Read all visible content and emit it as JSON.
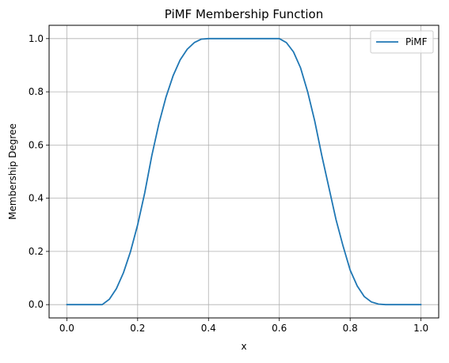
{
  "chart_data": {
    "type": "line",
    "title": "PiMF Membership Function",
    "xlabel": "x",
    "ylabel": "Membership Degree",
    "xlim": [
      -0.05,
      1.05
    ],
    "ylim": [
      -0.05,
      1.05
    ],
    "x_ticks": [
      0.0,
      0.2,
      0.4,
      0.6,
      0.8,
      1.0
    ],
    "x_tick_labels": [
      "0.0",
      "0.2",
      "0.4",
      "0.6",
      "0.8",
      "1.0"
    ],
    "y_ticks": [
      0.0,
      0.2,
      0.4,
      0.6,
      0.8,
      1.0
    ],
    "y_tick_labels": [
      "0.0",
      "0.2",
      "0.4",
      "0.6",
      "0.8",
      "1.0"
    ],
    "grid": true,
    "legend": {
      "position": "top-right",
      "entries": [
        "PiMF"
      ]
    },
    "series": [
      {
        "name": "PiMF",
        "color": "#1f77b4",
        "x": [
          0.0,
          0.1,
          0.12,
          0.14,
          0.16,
          0.18,
          0.2,
          0.22,
          0.24,
          0.26,
          0.28,
          0.3,
          0.32,
          0.34,
          0.36,
          0.38,
          0.4,
          0.5,
          0.6,
          0.62,
          0.64,
          0.66,
          0.68,
          0.7,
          0.72,
          0.74,
          0.76,
          0.78,
          0.8,
          0.82,
          0.84,
          0.86,
          0.88,
          0.9,
          1.0
        ],
        "values": [
          0.0,
          0.0,
          0.02,
          0.06,
          0.12,
          0.2,
          0.3,
          0.42,
          0.56,
          0.68,
          0.78,
          0.86,
          0.92,
          0.96,
          0.985,
          0.998,
          1.0,
          1.0,
          1.0,
          0.985,
          0.95,
          0.89,
          0.8,
          0.69,
          0.56,
          0.44,
          0.32,
          0.22,
          0.13,
          0.07,
          0.03,
          0.01,
          0.002,
          0.0,
          0.0
        ]
      }
    ]
  }
}
